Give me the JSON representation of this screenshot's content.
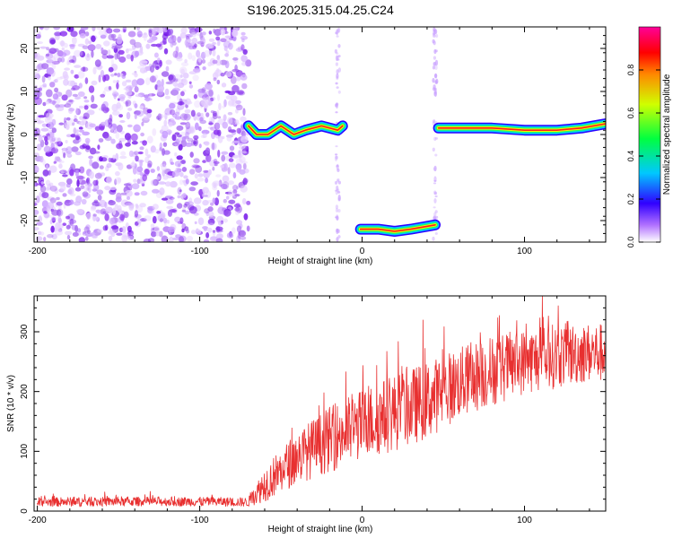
{
  "figure": {
    "title": "S196.2025.315.04.25.C24"
  },
  "chart_data": [
    {
      "type": "heatmap",
      "title": "",
      "xlabel": "Height of straight line (km)",
      "ylabel": "Frequency (Hz)",
      "xlim": [
        -202,
        150
      ],
      "ylim": [
        -25,
        25
      ],
      "xticks": [
        -200,
        -100,
        0,
        100
      ],
      "yticks": [
        -20,
        -10,
        0,
        10,
        20
      ],
      "colorbar": {
        "label": "Normalized spectral amplitude",
        "range": [
          0,
          1
        ],
        "ticks": [
          0.0,
          0.2,
          0.4,
          0.6,
          0.8
        ],
        "colormap": [
          "#ffffff",
          "#8800ff",
          "#0000ff",
          "#00ffff",
          "#00ff00",
          "#ffff00",
          "#ff0000",
          "#ff00aa"
        ]
      },
      "regions": [
        {
          "kind": "scattered noise",
          "x_range": [
            -202,
            -70
          ],
          "freq_range": [
            -25,
            25
          ]
        },
        {
          "kind": "tone",
          "x_range": [
            -70,
            -12
          ],
          "freq_path": [
            [
              -70,
              2
            ],
            [
              -65,
              0
            ],
            [
              -58,
              0
            ],
            [
              -50,
              2
            ],
            [
              -42,
              0
            ],
            [
              -35,
              1
            ],
            [
              -25,
              2
            ],
            [
              -15,
              1
            ],
            [
              -12,
              2
            ]
          ]
        },
        {
          "kind": "tone",
          "x_range": [
            -1,
            45
          ],
          "freq_path": [
            [
              -1,
              -22
            ],
            [
              10,
              -22
            ],
            [
              20,
              -22.5
            ],
            [
              30,
              -22
            ],
            [
              45,
              -21
            ]
          ]
        },
        {
          "kind": "tone",
          "x_range": [
            47,
            150
          ],
          "freq_path": [
            [
              47,
              1.5
            ],
            [
              80,
              1.5
            ],
            [
              100,
              1
            ],
            [
              120,
              1
            ],
            [
              135,
              1.5
            ],
            [
              150,
              2.5
            ]
          ]
        }
      ]
    },
    {
      "type": "line",
      "title": "",
      "xlabel": "Height of straight line (km)",
      "ylabel": "SNR (10 * v/v)",
      "xlim": [
        -202,
        150
      ],
      "ylim": [
        0,
        360
      ],
      "xticks": [
        -200,
        -100,
        0,
        100
      ],
      "yticks": [
        0,
        100,
        200,
        300
      ],
      "color": "#e83030",
      "series": [
        {
          "x": [
            -200,
            -150,
            -100,
            -70,
            -60,
            -40,
            -20,
            0,
            20,
            40,
            60,
            80,
            100,
            120,
            140,
            150
          ],
          "y": [
            15,
            16,
            16,
            15,
            45,
            90,
            120,
            145,
            165,
            185,
            215,
            235,
            250,
            260,
            265,
            265
          ],
          "spread": [
            8,
            8,
            8,
            8,
            30,
            45,
            55,
            60,
            65,
            65,
            60,
            60,
            55,
            55,
            50,
            50
          ]
        }
      ]
    }
  ]
}
